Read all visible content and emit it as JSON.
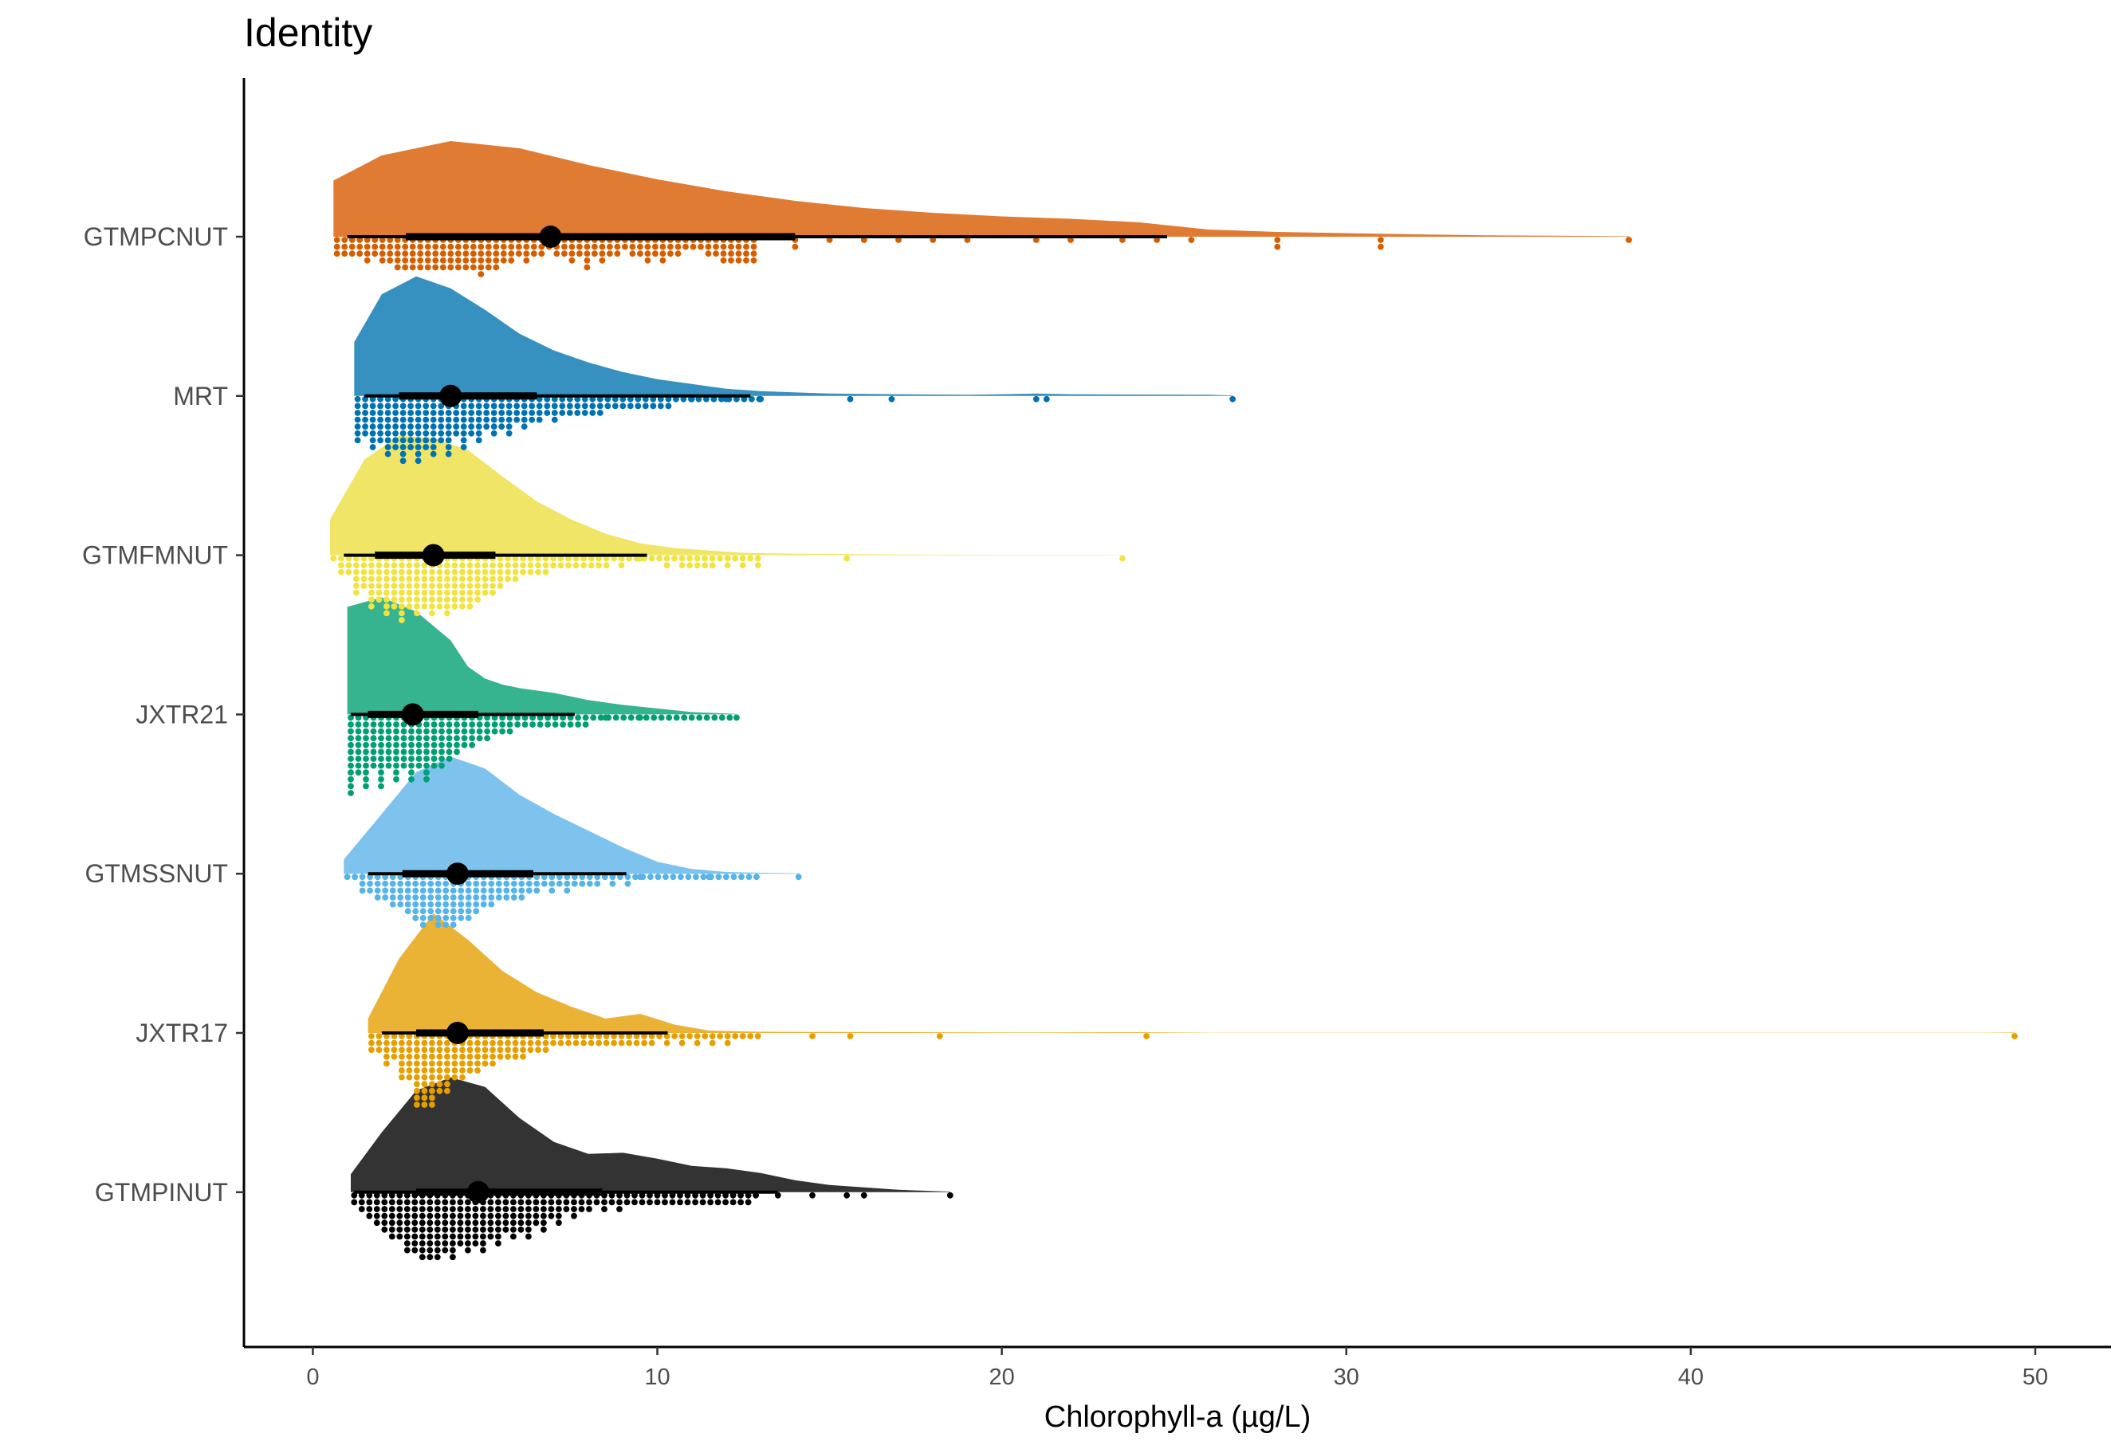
{
  "chart_data": {
    "type": "raincloud",
    "title": "Identity",
    "xlabel": "Chlorophyll-a (µg/L)",
    "ylabel": "",
    "xlim": [
      -2,
      52.2
    ],
    "x_ticks": [
      0,
      10,
      20,
      30,
      40,
      50
    ],
    "x_tick_labels": [
      "0",
      "10",
      "20",
      "30",
      "40",
      "50"
    ],
    "grid": false,
    "legend": "none",
    "series": [
      {
        "name": "GTMPCNUT",
        "color": "#e07b33",
        "point_color": "#d55e00",
        "median": 6.9,
        "q1": 2.7,
        "q3": 14.0,
        "lo": 1.0,
        "hi": 24.8,
        "min": 0.6,
        "max": 38.2,
        "density": [
          [
            0.6,
            0.47
          ],
          [
            2,
            0.68
          ],
          [
            4,
            0.8
          ],
          [
            6,
            0.74
          ],
          [
            8,
            0.6
          ],
          [
            10,
            0.48
          ],
          [
            12,
            0.38
          ],
          [
            14,
            0.3
          ],
          [
            16,
            0.24
          ],
          [
            18,
            0.2
          ],
          [
            20,
            0.17
          ],
          [
            22,
            0.15
          ],
          [
            24,
            0.12
          ],
          [
            26,
            0.06
          ],
          [
            28,
            0.04
          ],
          [
            30,
            0.03
          ],
          [
            32,
            0.02
          ],
          [
            34,
            0.012
          ],
          [
            36,
            0.008
          ],
          [
            38.2,
            0.004
          ]
        ],
        "dot_profile": [
          [
            0.7,
            3
          ],
          [
            2,
            4
          ],
          [
            3,
            6
          ],
          [
            4,
            5
          ],
          [
            5,
            6
          ],
          [
            6,
            4
          ],
          [
            7,
            3
          ],
          [
            8,
            5
          ],
          [
            9,
            3
          ],
          [
            10,
            4
          ],
          [
            11,
            2
          ],
          [
            12,
            4
          ],
          [
            13,
            5
          ],
          [
            14,
            2
          ],
          [
            15,
            1
          ],
          [
            16,
            1
          ],
          [
            17,
            1
          ],
          [
            18,
            1
          ],
          [
            19,
            1
          ],
          [
            21,
            1
          ],
          [
            22,
            1
          ],
          [
            23.5,
            1
          ],
          [
            24.5,
            1
          ],
          [
            25.5,
            1
          ],
          [
            28,
            2
          ],
          [
            31,
            2
          ],
          [
            38.2,
            1
          ]
        ]
      },
      {
        "name": "MRT",
        "color": "#3690c0",
        "point_color": "#0072b2",
        "median": 4.0,
        "q1": 2.5,
        "q3": 6.5,
        "lo": 1.5,
        "hi": 12.7,
        "min": 1.2,
        "max": 26.7,
        "density": [
          [
            1.2,
            0.45
          ],
          [
            2,
            0.85
          ],
          [
            3,
            1.0
          ],
          [
            4,
            0.9
          ],
          [
            5,
            0.72
          ],
          [
            6,
            0.52
          ],
          [
            7,
            0.38
          ],
          [
            8,
            0.28
          ],
          [
            9,
            0.2
          ],
          [
            10,
            0.14
          ],
          [
            11,
            0.1
          ],
          [
            12,
            0.06
          ],
          [
            13,
            0.04
          ],
          [
            15,
            0.02
          ],
          [
            17,
            0.015
          ],
          [
            19,
            0.01
          ],
          [
            20,
            0.015
          ],
          [
            21,
            0.02
          ],
          [
            22,
            0.015
          ],
          [
            24,
            0.012
          ],
          [
            26,
            0.01
          ],
          [
            26.7,
            0.005
          ]
        ],
        "dot_profile": [
          [
            1.3,
            7
          ],
          [
            2,
            9
          ],
          [
            3,
            10
          ],
          [
            4,
            9
          ],
          [
            5,
            7
          ],
          [
            6,
            5
          ],
          [
            7,
            4
          ],
          [
            8,
            3
          ],
          [
            9,
            2
          ],
          [
            10,
            2
          ],
          [
            11,
            1
          ],
          [
            12,
            1
          ],
          [
            13,
            1
          ],
          [
            15.6,
            1
          ],
          [
            16.8,
            1
          ],
          [
            21,
            1
          ],
          [
            21.3,
            1
          ],
          [
            26.7,
            1
          ]
        ]
      },
      {
        "name": "GTMFMNUT",
        "color": "#f0e566",
        "point_color": "#f0e442",
        "median": 3.5,
        "q1": 1.8,
        "q3": 5.3,
        "lo": 0.9,
        "hi": 9.7,
        "min": 0.5,
        "max": 23.5,
        "density": [
          [
            0.5,
            0.3
          ],
          [
            1.5,
            0.8
          ],
          [
            2.5,
            1.0
          ],
          [
            3.5,
            0.98
          ],
          [
            4.5,
            0.88
          ],
          [
            5.5,
            0.66
          ],
          [
            6.5,
            0.45
          ],
          [
            7.5,
            0.3
          ],
          [
            8.5,
            0.18
          ],
          [
            9.5,
            0.1
          ],
          [
            10.5,
            0.06
          ],
          [
            11.5,
            0.04
          ],
          [
            12.5,
            0.02
          ],
          [
            14,
            0.012
          ],
          [
            15.5,
            0.01
          ],
          [
            17,
            0.006
          ],
          [
            19,
            0.004
          ],
          [
            21,
            0.003
          ],
          [
            23.5,
            0.002
          ]
        ],
        "dot_profile": [
          [
            0.6,
            2
          ],
          [
            1.5,
            7
          ],
          [
            2.5,
            10
          ],
          [
            3.5,
            9
          ],
          [
            4.5,
            9
          ],
          [
            5.5,
            5
          ],
          [
            6.5,
            3
          ],
          [
            7.5,
            2
          ],
          [
            8.5,
            2
          ],
          [
            9.5,
            1
          ],
          [
            11,
            2
          ],
          [
            15.5,
            1
          ],
          [
            23.5,
            1
          ]
        ]
      },
      {
        "name": "JXTR21",
        "color": "#36b38f",
        "point_color": "#009e73",
        "median": 2.9,
        "q1": 1.6,
        "q3": 4.8,
        "lo": 1.1,
        "hi": 7.6,
        "min": 1.0,
        "max": 12.3,
        "density": [
          [
            1.0,
            0.9
          ],
          [
            2,
            0.98
          ],
          [
            3,
            0.86
          ],
          [
            4,
            0.62
          ],
          [
            4.5,
            0.4
          ],
          [
            5,
            0.3
          ],
          [
            5.5,
            0.25
          ],
          [
            6,
            0.22
          ],
          [
            7,
            0.18
          ],
          [
            8,
            0.12
          ],
          [
            9,
            0.08
          ],
          [
            10,
            0.05
          ],
          [
            11,
            0.02
          ],
          [
            12.3,
            0.005
          ]
        ],
        "dot_profile": [
          [
            1.1,
            12
          ],
          [
            1.8,
            11
          ],
          [
            2.5,
            10
          ],
          [
            3.2,
            10
          ],
          [
            3.9,
            8
          ],
          [
            4.5,
            5
          ],
          [
            5.5,
            3
          ],
          [
            6.5,
            2
          ],
          [
            7.5,
            2
          ],
          [
            8.5,
            1
          ],
          [
            9.5,
            1
          ],
          [
            12.3,
            1
          ]
        ]
      },
      {
        "name": "GTMSSNUT",
        "color": "#7ec3ed",
        "point_color": "#56b4e9",
        "median": 4.2,
        "q1": 2.6,
        "q3": 6.4,
        "lo": 1.6,
        "hi": 9.1,
        "min": 0.9,
        "max": 14.1,
        "density": [
          [
            0.9,
            0.12
          ],
          [
            2,
            0.5
          ],
          [
            3,
            0.85
          ],
          [
            4,
            0.98
          ],
          [
            5,
            0.88
          ],
          [
            6,
            0.66
          ],
          [
            7,
            0.5
          ],
          [
            8,
            0.36
          ],
          [
            9,
            0.22
          ],
          [
            10,
            0.1
          ],
          [
            11,
            0.04
          ],
          [
            12,
            0.015
          ],
          [
            13,
            0.008
          ],
          [
            14.1,
            0.004
          ]
        ],
        "dot_profile": [
          [
            1,
            1
          ],
          [
            1.8,
            4
          ],
          [
            2.5,
            6
          ],
          [
            3.2,
            8
          ],
          [
            3.9,
            9
          ],
          [
            4.6,
            7
          ],
          [
            5.3,
            5
          ],
          [
            6,
            4
          ],
          [
            6.7,
            3
          ],
          [
            7.4,
            3
          ],
          [
            8.1,
            2
          ],
          [
            8.8,
            2
          ],
          [
            9.5,
            1
          ],
          [
            11.5,
            1
          ],
          [
            14.1,
            1
          ]
        ]
      },
      {
        "name": "JXTR17",
        "color": "#eab336",
        "point_color": "#e69f00",
        "median": 4.2,
        "q1": 3.0,
        "q3": 6.7,
        "lo": 2.0,
        "hi": 10.3,
        "min": 1.6,
        "max": 49.4,
        "density": [
          [
            1.6,
            0.12
          ],
          [
            2.5,
            0.62
          ],
          [
            3.5,
            1.0
          ],
          [
            4.5,
            0.78
          ],
          [
            5.5,
            0.52
          ],
          [
            6.5,
            0.34
          ],
          [
            7.5,
            0.22
          ],
          [
            8.5,
            0.12
          ],
          [
            9.5,
            0.16
          ],
          [
            10.5,
            0.07
          ],
          [
            11.5,
            0.02
          ],
          [
            13,
            0.01
          ],
          [
            15,
            0.008
          ],
          [
            18,
            0.006
          ],
          [
            21,
            0.004
          ],
          [
            24,
            0.006
          ],
          [
            26,
            0.002
          ],
          [
            48.5,
            0.002
          ],
          [
            49.4,
            0.004
          ]
        ],
        "dot_profile": [
          [
            1.7,
            3
          ],
          [
            2.5,
            6
          ],
          [
            3.2,
            13
          ],
          [
            3.9,
            9
          ],
          [
            4.6,
            7
          ],
          [
            5.3,
            5
          ],
          [
            6,
            4
          ],
          [
            6.7,
            3
          ],
          [
            7.4,
            2
          ],
          [
            8.1,
            2
          ],
          [
            9,
            2
          ],
          [
            10,
            2
          ],
          [
            14.5,
            1
          ],
          [
            15.6,
            1
          ],
          [
            18.2,
            1
          ],
          [
            24.2,
            1
          ],
          [
            49.4,
            1
          ]
        ]
      },
      {
        "name": "GTMPINUT",
        "color": "#333333",
        "point_color": "#000000",
        "median": 4.8,
        "q1": 3.0,
        "q3": 8.4,
        "lo": 1.2,
        "hi": 13.5,
        "min": 1.1,
        "max": 18.5,
        "density": [
          [
            1.1,
            0.15
          ],
          [
            2,
            0.5
          ],
          [
            3,
            0.85
          ],
          [
            4,
            0.96
          ],
          [
            5,
            0.88
          ],
          [
            6,
            0.62
          ],
          [
            7,
            0.42
          ],
          [
            8,
            0.32
          ],
          [
            9,
            0.33
          ],
          [
            10,
            0.28
          ],
          [
            11,
            0.22
          ],
          [
            12,
            0.2
          ],
          [
            13,
            0.16
          ],
          [
            14,
            0.1
          ],
          [
            15,
            0.06
          ],
          [
            16,
            0.04
          ],
          [
            17,
            0.02
          ],
          [
            18.5,
            0.005
          ]
        ],
        "dot_profile": [
          [
            1.2,
            2
          ],
          [
            2,
            6
          ],
          [
            2.7,
            9
          ],
          [
            3.4,
            11
          ],
          [
            4.1,
            10
          ],
          [
            4.8,
            9
          ],
          [
            5.5,
            8
          ],
          [
            6.2,
            7
          ],
          [
            6.9,
            5
          ],
          [
            7.6,
            4
          ],
          [
            8.3,
            3
          ],
          [
            9,
            3
          ],
          [
            9.7,
            2
          ],
          [
            10.5,
            2
          ],
          [
            11.5,
            2
          ],
          [
            12.5,
            2
          ],
          [
            13.5,
            1
          ],
          [
            14.5,
            1
          ],
          [
            15.5,
            1
          ],
          [
            16,
            1
          ],
          [
            18.5,
            1
          ]
        ]
      }
    ]
  }
}
